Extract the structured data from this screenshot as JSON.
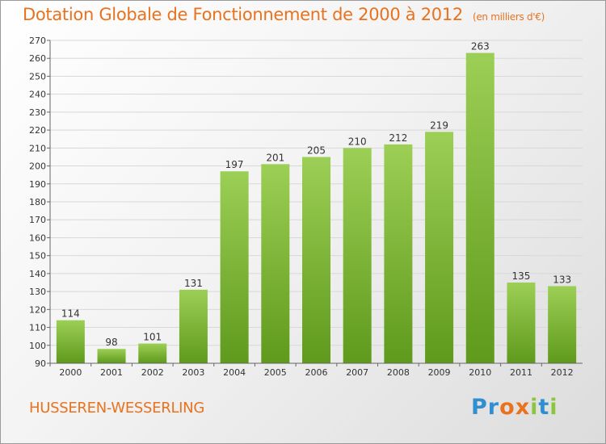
{
  "title": "Dotation Globale de Fonctionnement de 2000 à 2012",
  "subtitle": "(en milliers d'€)",
  "commune": "HUSSEREN-WESSERLING",
  "logo": {
    "text": "Proxiti",
    "letters": [
      {
        "ch": "P",
        "color": "#2f8fd0"
      },
      {
        "ch": "r",
        "color": "#2f8fd0"
      },
      {
        "ch": "o",
        "color": "#e8721e"
      },
      {
        "ch": "x",
        "color": "#e8721e"
      },
      {
        "ch": "i",
        "color": "#8cc63f"
      },
      {
        "ch": "t",
        "color": "#2f8fd0"
      },
      {
        "ch": "i",
        "color": "#8cc63f"
      }
    ]
  },
  "colors": {
    "accent": "#e8721e",
    "bar_top": "#9ccf55",
    "bar_bottom": "#5f9a1c",
    "grid": "#d8d8d8",
    "axis": "#666666"
  },
  "chart_data": {
    "type": "bar",
    "categories": [
      "2000",
      "2001",
      "2002",
      "2003",
      "2004",
      "2005",
      "2006",
      "2007",
      "2008",
      "2009",
      "2010",
      "2011",
      "2012"
    ],
    "values": [
      114,
      98,
      101,
      131,
      197,
      201,
      205,
      210,
      212,
      219,
      263,
      135,
      133
    ],
    "ylim": [
      90,
      270
    ],
    "yticks": [
      90,
      100,
      110,
      120,
      130,
      140,
      150,
      160,
      170,
      180,
      190,
      200,
      210,
      220,
      230,
      240,
      250,
      260,
      270
    ],
    "grid": true,
    "data_labels": true
  }
}
